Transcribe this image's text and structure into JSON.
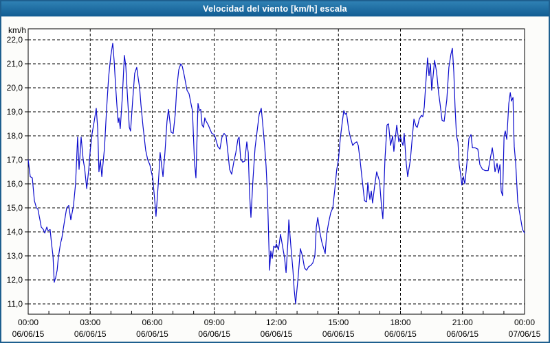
{
  "window": {
    "title": "Velocidad del viento [km/h] escala",
    "border_color": "#1E5F8F",
    "titlebar_top": "#2F81B4",
    "titlebar_bottom": "#115C92",
    "background": "#FCFCFA"
  },
  "chart_data": {
    "type": "line",
    "title": "Velocidad del viento [km/h] escala",
    "ylabel": "km/h",
    "xlabel": "",
    "ylim": [
      10.55,
      22.45
    ],
    "xlim_hours": [
      0,
      24
    ],
    "grid": "dashed",
    "legend": "none",
    "plot_bg": "#FFFFFF",
    "line_color": "#0A0ACC",
    "grid_color": "#000000",
    "y_unit_label": "km/h",
    "y_ticks": [
      {
        "v": 22,
        "label": "22,0"
      },
      {
        "v": 21,
        "label": "21,0"
      },
      {
        "v": 20,
        "label": "20,0"
      },
      {
        "v": 19,
        "label": "19,0"
      },
      {
        "v": 18,
        "label": "18,0"
      },
      {
        "v": 17,
        "label": "17,0"
      },
      {
        "v": 16,
        "label": "16,0"
      },
      {
        "v": 15,
        "label": "15,0"
      },
      {
        "v": 14,
        "label": "14,0"
      },
      {
        "v": 13,
        "label": "13,0"
      },
      {
        "v": 12,
        "label": "12,0"
      },
      {
        "v": 11,
        "label": "11,0"
      }
    ],
    "x_ticks": [
      {
        "hour": 0,
        "time": "00:00",
        "date": "06/06/15"
      },
      {
        "hour": 3,
        "time": "03:00",
        "date": "06/06/15"
      },
      {
        "hour": 6,
        "time": "06:00",
        "date": "06/06/15"
      },
      {
        "hour": 9,
        "time": "09:00",
        "date": "06/06/15"
      },
      {
        "hour": 12,
        "time": "12:00",
        "date": "06/06/15"
      },
      {
        "hour": 15,
        "time": "15:00",
        "date": "06/06/15"
      },
      {
        "hour": 18,
        "time": "18:00",
        "date": "06/06/15"
      },
      {
        "hour": 21,
        "time": "21:00",
        "date": "06/06/15"
      },
      {
        "hour": 24,
        "time": "00:00",
        "date": "07/06/15"
      }
    ],
    "x_minor_tick_hours": 1,
    "series": [
      {
        "name": "Velocidad del viento [km/h]",
        "points": [
          [
            0,
            17.0
          ],
          [
            0.1,
            16.3
          ],
          [
            0.2,
            16.25
          ],
          [
            0.3,
            15.3
          ],
          [
            0.4,
            15.0
          ],
          [
            0.47,
            14.95
          ],
          [
            0.57,
            14.5
          ],
          [
            0.63,
            14.2
          ],
          [
            0.73,
            14.1
          ],
          [
            0.8,
            13.95
          ],
          [
            0.9,
            14.2
          ],
          [
            0.96,
            14.05
          ],
          [
            1.06,
            14.1
          ],
          [
            1.13,
            13.5
          ],
          [
            1.2,
            13.0
          ],
          [
            1.26,
            11.9
          ],
          [
            1.33,
            12.1
          ],
          [
            1.4,
            12.4
          ],
          [
            1.46,
            12.95
          ],
          [
            1.56,
            13.5
          ],
          [
            1.63,
            13.75
          ],
          [
            1.73,
            14.3
          ],
          [
            1.86,
            15.0
          ],
          [
            1.96,
            15.1
          ],
          [
            2.06,
            14.5
          ],
          [
            2.19,
            15.1
          ],
          [
            2.29,
            16.0
          ],
          [
            2.39,
            17.95
          ],
          [
            2.46,
            16.6
          ],
          [
            2.56,
            17.95
          ],
          [
            2.66,
            17.0
          ],
          [
            2.73,
            16.65
          ],
          [
            2.83,
            15.8
          ],
          [
            2.93,
            16.6
          ],
          [
            3.0,
            17.4
          ],
          [
            3.09,
            18.1
          ],
          [
            3.19,
            18.6
          ],
          [
            3.29,
            19.15
          ],
          [
            3.36,
            18.3
          ],
          [
            3.42,
            16.5
          ],
          [
            3.49,
            17.0
          ],
          [
            3.56,
            16.3
          ],
          [
            3.69,
            17.5
          ],
          [
            3.79,
            19.1
          ],
          [
            3.89,
            20.45
          ],
          [
            3.99,
            21.3
          ],
          [
            4.09,
            21.85
          ],
          [
            4.16,
            21.1
          ],
          [
            4.22,
            20.15
          ],
          [
            4.29,
            19.25
          ],
          [
            4.35,
            18.55
          ],
          [
            4.39,
            18.75
          ],
          [
            4.45,
            18.3
          ],
          [
            4.55,
            19.6
          ],
          [
            4.65,
            21.35
          ],
          [
            4.72,
            20.9
          ],
          [
            4.79,
            19.8
          ],
          [
            4.89,
            18.35
          ],
          [
            4.95,
            18.2
          ],
          [
            5.05,
            19.45
          ],
          [
            5.15,
            20.6
          ],
          [
            5.25,
            20.85
          ],
          [
            5.32,
            20.4
          ],
          [
            5.39,
            20.0
          ],
          [
            5.45,
            19.3
          ],
          [
            5.55,
            18.4
          ],
          [
            5.68,
            17.4
          ],
          [
            5.78,
            17.0
          ],
          [
            5.88,
            16.8
          ],
          [
            6.02,
            16.25
          ],
          [
            6.12,
            15.3
          ],
          [
            6.18,
            14.65
          ],
          [
            6.25,
            15.5
          ],
          [
            6.32,
            16.4
          ],
          [
            6.38,
            17.3
          ],
          [
            6.45,
            16.8
          ],
          [
            6.52,
            16.3
          ],
          [
            6.61,
            17.3
          ],
          [
            6.71,
            18.6
          ],
          [
            6.78,
            19.1
          ],
          [
            6.85,
            18.6
          ],
          [
            6.91,
            18.15
          ],
          [
            7.01,
            18.1
          ],
          [
            7.11,
            18.9
          ],
          [
            7.18,
            19.95
          ],
          [
            7.28,
            20.75
          ],
          [
            7.38,
            21.0
          ],
          [
            7.45,
            20.9
          ],
          [
            7.55,
            20.5
          ],
          [
            7.68,
            19.9
          ],
          [
            7.78,
            19.75
          ],
          [
            7.88,
            19.3
          ],
          [
            7.94,
            19.05
          ],
          [
            8.04,
            16.9
          ],
          [
            8.11,
            16.25
          ],
          [
            8.21,
            19.35
          ],
          [
            8.28,
            19.05
          ],
          [
            8.34,
            19.1
          ],
          [
            8.41,
            18.45
          ],
          [
            8.48,
            18.35
          ],
          [
            8.54,
            18.75
          ],
          [
            8.61,
            18.6
          ],
          [
            8.71,
            18.45
          ],
          [
            8.78,
            18.3
          ],
          [
            8.88,
            18.1
          ],
          [
            9.0,
            18.05
          ],
          [
            9.07,
            17.85
          ],
          [
            9.17,
            17.55
          ],
          [
            9.27,
            17.45
          ],
          [
            9.37,
            17.95
          ],
          [
            9.47,
            18.1
          ],
          [
            9.57,
            18.0
          ],
          [
            9.67,
            17.2
          ],
          [
            9.74,
            16.6
          ],
          [
            9.84,
            16.4
          ],
          [
            9.94,
            16.9
          ],
          [
            10.04,
            17.3
          ],
          [
            10.14,
            17.85
          ],
          [
            10.2,
            17.95
          ],
          [
            10.27,
            17.05
          ],
          [
            10.37,
            16.9
          ],
          [
            10.47,
            16.95
          ],
          [
            10.57,
            17.75
          ],
          [
            10.64,
            17.3
          ],
          [
            10.7,
            15.65
          ],
          [
            10.77,
            14.6
          ],
          [
            10.87,
            16.2
          ],
          [
            10.97,
            17.5
          ],
          [
            11.07,
            18.2
          ],
          [
            11.17,
            18.9
          ],
          [
            11.27,
            19.15
          ],
          [
            11.33,
            18.6
          ],
          [
            11.43,
            17.6
          ],
          [
            11.5,
            16.75
          ],
          [
            11.57,
            15.5
          ],
          [
            11.67,
            12.4
          ],
          [
            11.73,
            13.2
          ],
          [
            11.8,
            12.9
          ],
          [
            11.87,
            13.4
          ],
          [
            11.95,
            13.35
          ],
          [
            12.0,
            13.5
          ],
          [
            12.1,
            13.25
          ],
          [
            12.2,
            13.9
          ],
          [
            12.3,
            13.4
          ],
          [
            12.4,
            12.9
          ],
          [
            12.47,
            12.3
          ],
          [
            12.56,
            13.6
          ],
          [
            12.6,
            14.5
          ],
          [
            12.7,
            13.4
          ],
          [
            12.8,
            12.4
          ],
          [
            12.86,
            11.6
          ],
          [
            12.93,
            11.0
          ],
          [
            13.06,
            12.2
          ],
          [
            13.16,
            13.3
          ],
          [
            13.26,
            13.0
          ],
          [
            13.36,
            12.5
          ],
          [
            13.46,
            12.4
          ],
          [
            13.56,
            12.55
          ],
          [
            13.66,
            12.6
          ],
          [
            13.76,
            12.7
          ],
          [
            13.86,
            13.0
          ],
          [
            13.93,
            14.2
          ],
          [
            14.0,
            14.6
          ],
          [
            14.1,
            14.0
          ],
          [
            14.19,
            13.6
          ],
          [
            14.29,
            13.3
          ],
          [
            14.36,
            13.1
          ],
          [
            14.43,
            13.9
          ],
          [
            14.53,
            14.4
          ],
          [
            14.63,
            14.8
          ],
          [
            14.73,
            15.0
          ],
          [
            14.83,
            15.8
          ],
          [
            14.92,
            16.6
          ],
          [
            15.0,
            17.0
          ],
          [
            15.09,
            17.9
          ],
          [
            15.19,
            18.6
          ],
          [
            15.26,
            19.05
          ],
          [
            15.33,
            18.9
          ],
          [
            15.39,
            18.95
          ],
          [
            15.49,
            18.3
          ],
          [
            15.56,
            18.0
          ],
          [
            15.69,
            17.6
          ],
          [
            15.79,
            17.7
          ],
          [
            15.89,
            17.75
          ],
          [
            15.96,
            17.6
          ],
          [
            16.06,
            16.9
          ],
          [
            16.16,
            16.1
          ],
          [
            16.26,
            15.3
          ],
          [
            16.36,
            15.25
          ],
          [
            16.42,
            16.05
          ],
          [
            16.52,
            15.35
          ],
          [
            16.59,
            15.7
          ],
          [
            16.65,
            15.2
          ],
          [
            16.75,
            15.9
          ],
          [
            16.85,
            16.5
          ],
          [
            16.99,
            16.1
          ],
          [
            17.09,
            15.0
          ],
          [
            17.15,
            14.55
          ],
          [
            17.25,
            17.0
          ],
          [
            17.35,
            18.45
          ],
          [
            17.42,
            18.5
          ],
          [
            17.52,
            17.6
          ],
          [
            17.62,
            18.0
          ],
          [
            17.68,
            17.35
          ],
          [
            17.82,
            18.45
          ],
          [
            17.92,
            17.75
          ],
          [
            18.0,
            17.95
          ],
          [
            18.12,
            17.6
          ],
          [
            18.18,
            18.1
          ],
          [
            18.28,
            16.85
          ],
          [
            18.35,
            16.3
          ],
          [
            18.48,
            17.0
          ],
          [
            18.58,
            18.0
          ],
          [
            18.65,
            18.7
          ],
          [
            18.75,
            18.4
          ],
          [
            18.81,
            18.35
          ],
          [
            18.91,
            18.7
          ],
          [
            19.01,
            18.85
          ],
          [
            19.08,
            18.8
          ],
          [
            19.15,
            19.2
          ],
          [
            19.21,
            20.0
          ],
          [
            19.31,
            21.25
          ],
          [
            19.38,
            20.5
          ],
          [
            19.45,
            21.0
          ],
          [
            19.51,
            19.9
          ],
          [
            19.58,
            20.5
          ],
          [
            19.65,
            21.15
          ],
          [
            19.75,
            20.65
          ],
          [
            19.84,
            19.8
          ],
          [
            19.91,
            19.35
          ],
          [
            20.01,
            18.65
          ],
          [
            20.11,
            18.6
          ],
          [
            20.24,
            19.5
          ],
          [
            20.34,
            20.85
          ],
          [
            20.44,
            21.4
          ],
          [
            20.51,
            21.65
          ],
          [
            20.58,
            20.65
          ],
          [
            20.64,
            19.2
          ],
          [
            20.71,
            18.0
          ],
          [
            20.78,
            17.75
          ],
          [
            20.84,
            16.8
          ],
          [
            20.91,
            16.4
          ],
          [
            20.97,
            15.95
          ],
          [
            21.04,
            16.3
          ],
          [
            21.11,
            16.0
          ],
          [
            21.21,
            16.85
          ],
          [
            21.31,
            17.9
          ],
          [
            21.41,
            18.05
          ],
          [
            21.48,
            17.5
          ],
          [
            21.61,
            17.5
          ],
          [
            21.74,
            17.45
          ],
          [
            21.84,
            16.8
          ],
          [
            21.97,
            16.6
          ],
          [
            22.11,
            16.55
          ],
          [
            22.24,
            16.55
          ],
          [
            22.34,
            17.05
          ],
          [
            22.44,
            17.5
          ],
          [
            22.51,
            17.05
          ],
          [
            22.57,
            16.5
          ],
          [
            22.67,
            16.85
          ],
          [
            22.74,
            16.45
          ],
          [
            22.81,
            16.8
          ],
          [
            22.87,
            15.7
          ],
          [
            22.94,
            15.5
          ],
          [
            23.01,
            18.0
          ],
          [
            23.07,
            18.2
          ],
          [
            23.14,
            17.85
          ],
          [
            23.24,
            19.35
          ],
          [
            23.31,
            19.8
          ],
          [
            23.37,
            19.45
          ],
          [
            23.44,
            19.6
          ],
          [
            23.47,
            18.3
          ],
          [
            23.5,
            17.55
          ],
          [
            23.57,
            16.85
          ],
          [
            23.67,
            15.25
          ],
          [
            23.8,
            14.6
          ],
          [
            23.9,
            14.1
          ],
          [
            24.0,
            13.95
          ]
        ]
      }
    ]
  }
}
